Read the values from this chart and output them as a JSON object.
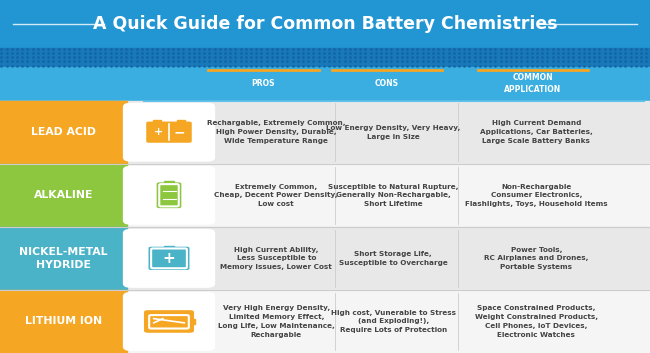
{
  "title": "A Quick Guide for Common Battery Chemistries",
  "header_bg": "#2196d3",
  "header_text_color": "#ffffff",
  "dot_strip_color": "#1a7bbf",
  "col_header_bg": "#3aaee0",
  "col_header_orange_line": "#f5a623",
  "rows": [
    {
      "label": "LEAD ACID",
      "label_bg": "#f5a623",
      "label_text_color": "#ffffff",
      "row_bg": "#e8e8e8",
      "icon_bg": "#f5a623",
      "icon_type": "lead_acid",
      "pros": "Rechargable, Extremely Common,\nHigh Power Density, Durable,\nWide Temperature Range",
      "cons": "Low Energy Density, Very Heavy,\nLarge in Size",
      "app": "High Current Demand\nApplications, Car Batteries,\nLarge Scale Battery Banks"
    },
    {
      "label": "ALKALINE",
      "label_bg": "#8dc63f",
      "label_text_color": "#ffffff",
      "row_bg": "#f5f5f5",
      "icon_bg": "#8dc63f",
      "icon_type": "alkaline",
      "pros": "Extremely Common,\nCheap, Decent Power Density,\nLow cost",
      "cons": "Susceptible to Natural Rupture,\nGenerally Non-Rechargable,\nShort Lifetime",
      "app": "Non-Rechargable\nConsumer Electronics,\nFlashlights, Toys, Household Items"
    },
    {
      "label": "NICKEL-METAL\nHYDRIDE",
      "label_bg": "#4ab3c8",
      "label_text_color": "#ffffff",
      "row_bg": "#e8e8e8",
      "icon_bg": "#4ab3c8",
      "icon_type": "nickel",
      "pros": "High Current Ability,\nLess Susceptible to\nMemory Issues, Lower Cost",
      "cons": "Short Storage Life,\nSusceptible to Overcharge",
      "app": "Power Tools,\nRC Airplanes and Drones,\nPortable Systems"
    },
    {
      "label": "LITHIUM ION",
      "label_bg": "#f5a623",
      "label_text_color": "#ffffff",
      "row_bg": "#f5f5f5",
      "icon_bg": "#f5a623",
      "icon_type": "lithium",
      "pros": "Very High Energy Density,\nLimited Memory Effect,\nLong Life, Low Maintenance,\nRechargable",
      "cons": "High cost, Vunerable to Stress\n(and Exploding!),\nRequire Lots of Protection",
      "app": "Space Constrained Products,\nWeight Constrained Products,\nCell Phones, IoT Devices,\nElectronic Watches"
    }
  ],
  "divider_color": "#cccccc",
  "text_color": "#444444"
}
